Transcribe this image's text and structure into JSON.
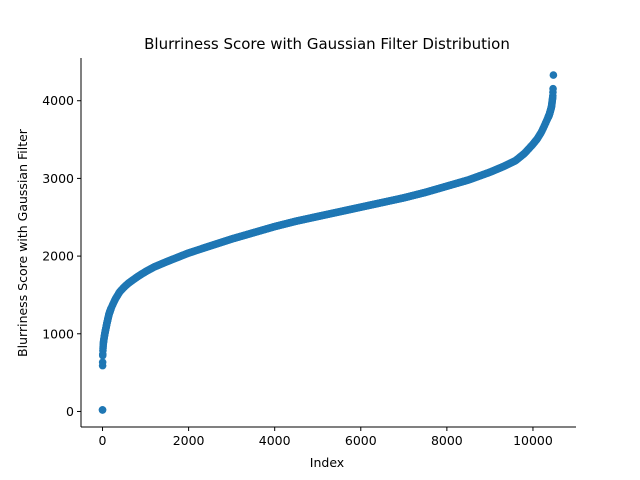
{
  "chart_data": {
    "type": "scatter",
    "title": "Blurriness Score with Gaussian Filter Distribution",
    "xlabel": "Index",
    "ylabel": "Blurriness Score with Gaussian Filter",
    "xlim": [
      -500,
      11000
    ],
    "ylim": [
      -200,
      4550
    ],
    "xticks": [
      0,
      2000,
      4000,
      6000,
      8000,
      10000
    ],
    "yticks": [
      0,
      1000,
      2000,
      3000,
      4000
    ],
    "grid": false,
    "spines": [
      "left",
      "bottom"
    ],
    "marker_color": "#1f77b4",
    "n_points": 10470,
    "sorted_curve": [
      [
        0,
        20
      ],
      [
        2,
        590
      ],
      [
        5,
        720
      ],
      [
        10,
        800
      ],
      [
        20,
        880
      ],
      [
        40,
        960
      ],
      [
        60,
        1020
      ],
      [
        100,
        1130
      ],
      [
        150,
        1250
      ],
      [
        200,
        1330
      ],
      [
        300,
        1450
      ],
      [
        400,
        1540
      ],
      [
        500,
        1600
      ],
      [
        600,
        1650
      ],
      [
        800,
        1730
      ],
      [
        1000,
        1800
      ],
      [
        1200,
        1860
      ],
      [
        1500,
        1930
      ],
      [
        2000,
        2040
      ],
      [
        2500,
        2130
      ],
      [
        3000,
        2220
      ],
      [
        3500,
        2300
      ],
      [
        4000,
        2380
      ],
      [
        4500,
        2450
      ],
      [
        5000,
        2510
      ],
      [
        5500,
        2570
      ],
      [
        6000,
        2630
      ],
      [
        6500,
        2690
      ],
      [
        7000,
        2750
      ],
      [
        7500,
        2820
      ],
      [
        8000,
        2900
      ],
      [
        8500,
        2980
      ],
      [
        9000,
        3080
      ],
      [
        9300,
        3150
      ],
      [
        9600,
        3230
      ],
      [
        9800,
        3320
      ],
      [
        10000,
        3440
      ],
      [
        10100,
        3510
      ],
      [
        10200,
        3600
      ],
      [
        10300,
        3720
      ],
      [
        10380,
        3820
      ],
      [
        10430,
        3920
      ],
      [
        10460,
        4050
      ],
      [
        10470,
        4200
      ],
      [
        10475,
        4330
      ]
    ]
  }
}
